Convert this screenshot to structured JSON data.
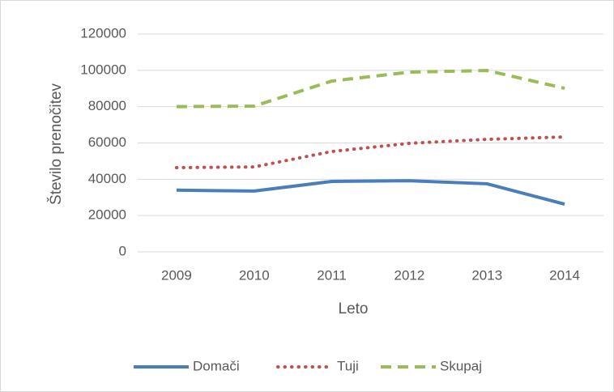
{
  "chart_data": {
    "type": "line",
    "categories": [
      "2009",
      "2010",
      "2011",
      "2012",
      "2013",
      "2014"
    ],
    "series": [
      {
        "name": "Domači",
        "color": "#4a7ebb",
        "style": "solid",
        "values": [
          34000,
          33500,
          38800,
          39200,
          37500,
          26300
        ]
      },
      {
        "name": "Tuji",
        "color": "#c0504d",
        "style": "dotted",
        "values": [
          46400,
          46800,
          55300,
          59800,
          62000,
          63300
        ]
      },
      {
        "name": "Skupaj",
        "color": "#9bbb59",
        "style": "dashed",
        "values": [
          80000,
          80300,
          94100,
          99000,
          99900,
          90100
        ]
      }
    ],
    "xlabel": "Leto",
    "ylabel": "Število prenočitev",
    "ylim": [
      0,
      120000
    ],
    "yticks": [
      0,
      20000,
      40000,
      60000,
      80000,
      100000,
      120000
    ],
    "grid": true,
    "legend": "bottom"
  }
}
